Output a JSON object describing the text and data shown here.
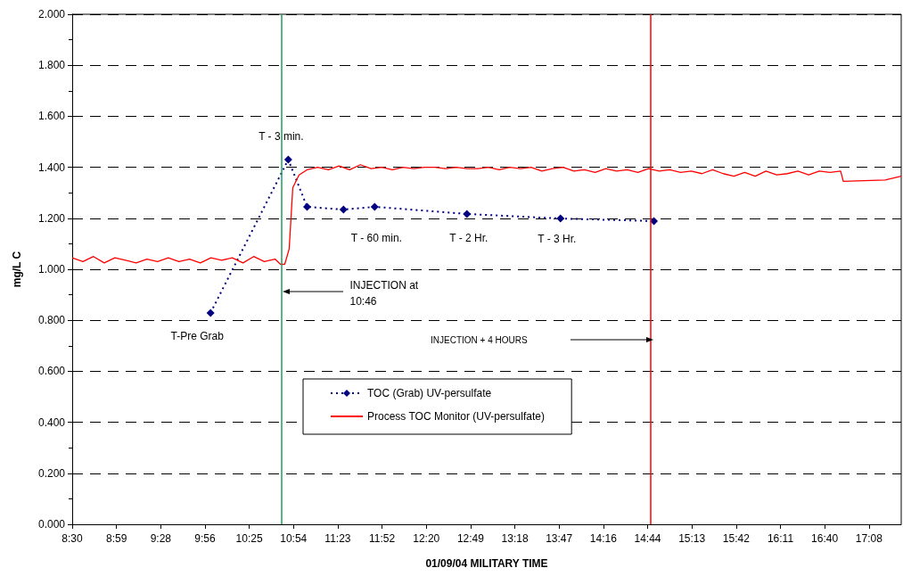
{
  "chart_data": {
    "type": "line",
    "xlabel": "01/09/04 MILITARY TIME",
    "ylabel": "mg/L C",
    "xlim": [
      8.5,
      17.49
    ],
    "xticks": [
      {
        "value": 8.5,
        "label": "8:30"
      },
      {
        "value": 8.98,
        "label": "8:59"
      },
      {
        "value": 9.46,
        "label": "9:28"
      },
      {
        "value": 9.94,
        "label": "9:56"
      },
      {
        "value": 10.42,
        "label": "10:25"
      },
      {
        "value": 10.9,
        "label": "10:54"
      },
      {
        "value": 11.38,
        "label": "11:23"
      },
      {
        "value": 11.86,
        "label": "11:52"
      },
      {
        "value": 12.34,
        "label": "12:20"
      },
      {
        "value": 12.82,
        "label": "12:49"
      },
      {
        "value": 13.3,
        "label": "13:18"
      },
      {
        "value": 13.78,
        "label": "13:47"
      },
      {
        "value": 14.26,
        "label": "14:16"
      },
      {
        "value": 14.74,
        "label": "14:44"
      },
      {
        "value": 15.22,
        "label": "15:13"
      },
      {
        "value": 15.7,
        "label": "15:42"
      },
      {
        "value": 16.18,
        "label": "16:11"
      },
      {
        "value": 16.66,
        "label": "16:40"
      },
      {
        "value": 17.14,
        "label": "17:08"
      }
    ],
    "ylim": [
      0,
      2
    ],
    "yticks": [
      {
        "value": 0,
        "label": "0.000"
      },
      {
        "value": 0.2,
        "label": "0.200"
      },
      {
        "value": 0.4,
        "label": "0.400"
      },
      {
        "value": 0.6,
        "label": "0.600"
      },
      {
        "value": 0.8,
        "label": "0.800"
      },
      {
        "value": 1,
        "label": "1.000"
      },
      {
        "value": 1.2,
        "label": "1.200"
      },
      {
        "value": 1.4,
        "label": "1.400"
      },
      {
        "value": 1.6,
        "label": "1.600"
      },
      {
        "value": 1.8,
        "label": "1.800"
      },
      {
        "value": 2,
        "label": "2.000"
      }
    ],
    "grid": "y",
    "legend": "bottom",
    "series": [
      {
        "name": "TOC (Grab) UV-persulfate",
        "color": "#000080",
        "marker": "diamond",
        "line_style": "dotted",
        "x": [
          10.0,
          10.843,
          11.047,
          11.442,
          11.78,
          12.78,
          13.795,
          14.808
        ],
        "values": [
          0.829,
          1.43,
          1.245,
          1.234,
          1.245,
          1.217,
          1.199,
          1.189
        ]
      },
      {
        "name": "Process TOC Monitor (UV-persulfate)",
        "color": "#ff0000",
        "marker": "none",
        "line_style": "solid",
        "x": [
          8.5,
          8.616,
          8.731,
          8.847,
          8.963,
          9.079,
          9.194,
          9.31,
          9.426,
          9.542,
          9.657,
          9.773,
          9.889,
          10.005,
          10.12,
          10.236,
          10.352,
          10.468,
          10.583,
          10.699,
          10.757,
          10.805,
          10.853,
          10.892,
          10.96,
          11.046,
          11.162,
          11.278,
          11.394,
          11.509,
          11.625,
          11.741,
          11.857,
          11.972,
          12.088,
          12.204,
          12.319,
          12.435,
          12.551,
          12.667,
          12.782,
          12.898,
          13.014,
          13.13,
          13.245,
          13.361,
          13.477,
          13.593,
          13.708,
          13.824,
          13.94,
          14.056,
          14.171,
          14.287,
          14.403,
          14.519,
          14.634,
          14.75,
          14.866,
          14.981,
          15.097,
          15.213,
          15.329,
          15.444,
          15.56,
          15.676,
          15.792,
          15.907,
          16.023,
          16.139,
          16.255,
          16.37,
          16.486,
          16.602,
          16.718,
          16.833,
          16.862,
          17.316,
          17.489
        ],
        "values": [
          1.045,
          1.03,
          1.05,
          1.025,
          1.045,
          1.035,
          1.025,
          1.04,
          1.03,
          1.045,
          1.03,
          1.04,
          1.025,
          1.045,
          1.035,
          1.045,
          1.025,
          1.05,
          1.03,
          1.04,
          1.02,
          1.02,
          1.08,
          1.32,
          1.37,
          1.39,
          1.4,
          1.39,
          1.405,
          1.39,
          1.41,
          1.395,
          1.4,
          1.39,
          1.4,
          1.395,
          1.4,
          1.4,
          1.395,
          1.4,
          1.395,
          1.395,
          1.4,
          1.39,
          1.4,
          1.395,
          1.4,
          1.385,
          1.395,
          1.4,
          1.385,
          1.39,
          1.38,
          1.395,
          1.385,
          1.39,
          1.38,
          1.395,
          1.385,
          1.39,
          1.38,
          1.385,
          1.375,
          1.39,
          1.375,
          1.365,
          1.38,
          1.365,
          1.385,
          1.37,
          1.375,
          1.385,
          1.37,
          1.385,
          1.38,
          1.385,
          1.345,
          1.35,
          1.365
        ]
      }
    ],
    "ref_lines": [
      {
        "axis": "x",
        "value": 10.767,
        "color": "#1f9e5a"
      },
      {
        "axis": "x",
        "value": 14.767,
        "color": "#ff0000"
      }
    ],
    "annotations": [
      {
        "text": "T - 3 min.",
        "x": 10.843,
        "y": 1.43
      },
      {
        "text": "T-Pre Grab",
        "x": 10.0,
        "y": 0.829
      },
      {
        "text": "T - 60 min.",
        "x": 11.442,
        "y": 1.234
      },
      {
        "text": "T - 2 Hr.",
        "x": 12.78,
        "y": 1.217
      },
      {
        "text": "T - 3 Hr.",
        "x": 13.795,
        "y": 1.199
      },
      {
        "text": "INJECTION at 10:46",
        "x": 10.767,
        "y": 0.913
      },
      "INJECTION + 4 HOURS"
    ]
  }
}
